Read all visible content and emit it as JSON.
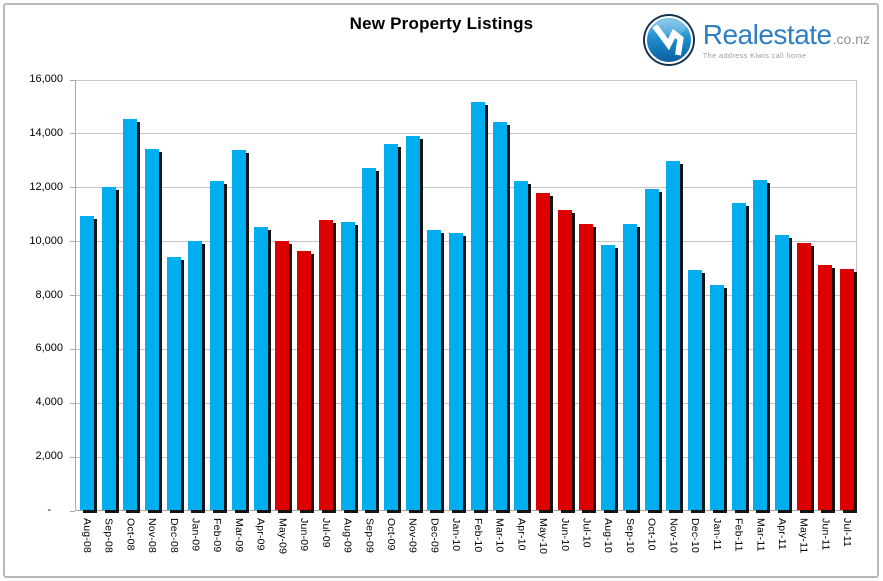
{
  "title": "New Property Listings",
  "logo": {
    "brand": "Realestate",
    "tld": ".co.nz",
    "tagline": "The address Kiwis call home"
  },
  "colors": {
    "bar_default": "#00AEEF",
    "bar_highlight": "#DD0000",
    "bar_shadow": "#141414",
    "brand_blue": "#2E7FC1",
    "gridline": "#C6C6C6",
    "axis": "#A9A9A9"
  },
  "chart_data": {
    "type": "bar",
    "title": "New Property Listings",
    "categories": [
      "Aug-08",
      "Sep-08",
      "Oct-08",
      "Nov-08",
      "Dec-08",
      "Jan-09",
      "Feb-09",
      "Mar-09",
      "Apr-09",
      "May-09",
      "Jun-09",
      "Jul-09",
      "Aug-09",
      "Sep-09",
      "Oct-09",
      "Nov-09",
      "Dec-09",
      "Jan-10",
      "Feb-10",
      "Mar-10",
      "Apr-10",
      "May-10",
      "Jun-10",
      "Jul-10",
      "Aug-10",
      "Sep-10",
      "Oct-10",
      "Nov-10",
      "Dec-10",
      "Jan-11",
      "Feb-11",
      "Mar-11",
      "Apr-11",
      "May-11",
      "Jun-11",
      "Jul-11"
    ],
    "values": [
      10900,
      12000,
      14500,
      13400,
      9400,
      10000,
      12200,
      13350,
      10500,
      10000,
      9600,
      10750,
      10700,
      12700,
      13600,
      13900,
      10400,
      10300,
      15150,
      14400,
      12200,
      11750,
      11150,
      10600,
      9850,
      10600,
      11900,
      12950,
      8900,
      8350,
      11400,
      12250,
      10200,
      9900,
      9100,
      8950
    ],
    "bar_colors": [
      "blue",
      "blue",
      "blue",
      "blue",
      "blue",
      "blue",
      "blue",
      "blue",
      "blue",
      "red",
      "red",
      "red",
      "blue",
      "blue",
      "blue",
      "blue",
      "blue",
      "blue",
      "blue",
      "blue",
      "blue",
      "red",
      "red",
      "red",
      "blue",
      "blue",
      "blue",
      "blue",
      "blue",
      "blue",
      "blue",
      "blue",
      "blue",
      "red",
      "red",
      "red"
    ],
    "highlighted_categories": [
      "May-09",
      "Jun-09",
      "Jul-09",
      "May-10",
      "Jun-10",
      "Jul-10",
      "May-11",
      "Jun-11",
      "Jul-11"
    ],
    "xlabel": "",
    "ylabel": "",
    "ylim": [
      0,
      16000
    ],
    "ytick_interval": 2000,
    "yticks": [
      {
        "label": "16,000",
        "value": 16000
      },
      {
        "label": "14,000",
        "value": 14000
      },
      {
        "label": "12,000",
        "value": 12000
      },
      {
        "label": "10,000",
        "value": 10000
      },
      {
        "label": "8,000",
        "value": 8000
      },
      {
        "label": "6,000",
        "value": 6000
      },
      {
        "label": "4,000",
        "value": 4000
      },
      {
        "label": "2,000",
        "value": 2000
      },
      {
        "label": "-",
        "value": 0
      }
    ],
    "grid": true,
    "legend": false
  }
}
